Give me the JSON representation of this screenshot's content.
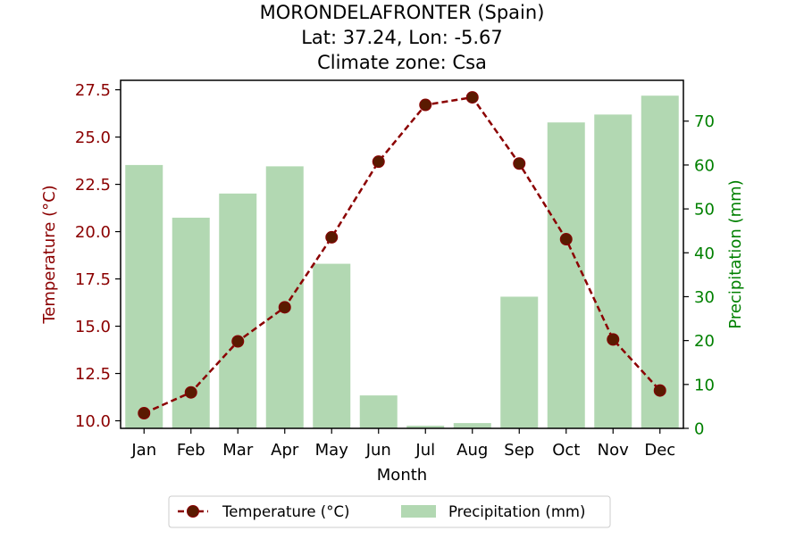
{
  "chart_data": {
    "type": "bar",
    "title_lines": [
      "MORONDELAFRONTER (Spain)",
      "Lat: 37.24, Lon: -5.67",
      "Climate zone: Csa"
    ],
    "xlabel": "Month",
    "ylabel_left": "Temperature (°C)",
    "ylabel_right": "Precipitation (mm)",
    "categories": [
      "Jan",
      "Feb",
      "Mar",
      "Apr",
      "May",
      "Jun",
      "Jul",
      "Aug",
      "Sep",
      "Oct",
      "Nov",
      "Dec"
    ],
    "series": [
      {
        "name": "Temperature (°C)",
        "kind": "line",
        "axis": "left",
        "color": "#8b0000",
        "values": [
          10.4,
          11.5,
          14.2,
          16.0,
          19.7,
          23.7,
          26.7,
          27.1,
          23.6,
          19.6,
          14.3,
          11.6
        ]
      },
      {
        "name": "Precipitation (mm)",
        "kind": "bar",
        "axis": "right",
        "color": "#b2d8b2",
        "values": [
          60,
          48,
          53.5,
          59.7,
          37.5,
          7.5,
          0.6,
          1.2,
          30,
          69.7,
          71.5,
          75.8
        ]
      }
    ],
    "ylim_left": [
      9.6,
      28.0
    ],
    "ylim_right": [
      0,
      79.3
    ],
    "yticks_left": [
      "10.0",
      "12.5",
      "15.0",
      "17.5",
      "20.0",
      "22.5",
      "25.0",
      "27.5"
    ],
    "yticks_right": [
      "0",
      "10",
      "20",
      "30",
      "40",
      "50",
      "60",
      "70"
    ],
    "left_axis_color": "#8b0000",
    "right_axis_color": "#008000",
    "grid": false,
    "legend_position": "bottom-center"
  }
}
